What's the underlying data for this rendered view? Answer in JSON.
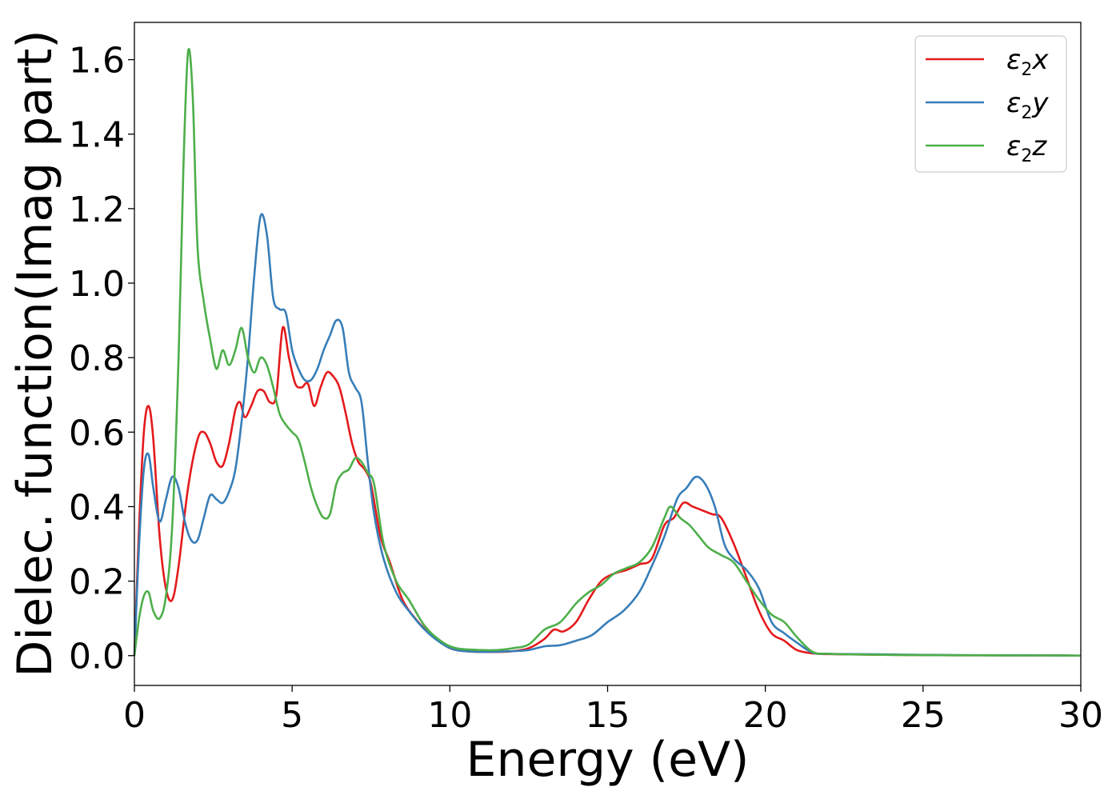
{
  "chart_data": {
    "type": "line",
    "xlabel": "Energy (eV)",
    "ylabel": "Dielec. function(Imag part)",
    "xlim": [
      0,
      30
    ],
    "ylim": [
      -0.08,
      1.7
    ],
    "xticks": [
      0,
      5,
      10,
      15,
      20,
      25,
      30
    ],
    "xtick_labels": [
      "0",
      "5",
      "10",
      "15",
      "20",
      "25",
      "30"
    ],
    "yticks": [
      0.0,
      0.2,
      0.4,
      0.6,
      0.8,
      1.0,
      1.2,
      1.4,
      1.6
    ],
    "ytick_labels": [
      "0.0",
      "0.2",
      "0.4",
      "0.6",
      "0.8",
      "1.0",
      "1.2",
      "1.4",
      "1.6"
    ],
    "grid": false,
    "legend_position": "top-right",
    "series": [
      {
        "name": "ε2x",
        "legend": {
          "base": "ε",
          "sub": "2",
          "var": "x"
        },
        "color": "#e41a1c",
        "x": [
          0,
          0.15,
          0.3,
          0.45,
          0.6,
          0.8,
          1.0,
          1.2,
          1.4,
          1.7,
          2.0,
          2.2,
          2.4,
          2.6,
          2.8,
          3.0,
          3.2,
          3.35,
          3.5,
          3.7,
          3.9,
          4.1,
          4.3,
          4.5,
          4.7,
          4.9,
          5.1,
          5.3,
          5.5,
          5.7,
          5.9,
          6.1,
          6.3,
          6.5,
          6.7,
          6.9,
          7.1,
          7.3,
          7.5,
          7.8,
          8.1,
          8.5,
          9.0,
          9.5,
          10.0,
          10.5,
          11,
          11.5,
          12,
          12.5,
          13,
          13.3,
          13.6,
          14,
          14.4,
          14.8,
          15.2,
          15.6,
          16,
          16.4,
          16.8,
          17.1,
          17.4,
          17.7,
          18,
          18.3,
          18.6,
          19,
          19.4,
          19.8,
          20.2,
          20.6,
          21,
          21.5,
          22,
          23,
          24,
          25,
          26,
          27,
          28,
          29,
          30
        ],
        "y": [
          0.0,
          0.35,
          0.6,
          0.67,
          0.58,
          0.32,
          0.18,
          0.15,
          0.24,
          0.45,
          0.58,
          0.6,
          0.57,
          0.52,
          0.51,
          0.57,
          0.66,
          0.68,
          0.64,
          0.67,
          0.71,
          0.71,
          0.68,
          0.7,
          0.88,
          0.8,
          0.73,
          0.72,
          0.73,
          0.67,
          0.72,
          0.76,
          0.75,
          0.72,
          0.65,
          0.57,
          0.52,
          0.5,
          0.46,
          0.32,
          0.25,
          0.15,
          0.09,
          0.05,
          0.02,
          0.012,
          0.01,
          0.01,
          0.012,
          0.02,
          0.045,
          0.07,
          0.065,
          0.09,
          0.15,
          0.2,
          0.22,
          0.23,
          0.245,
          0.26,
          0.35,
          0.37,
          0.41,
          0.4,
          0.39,
          0.38,
          0.37,
          0.3,
          0.21,
          0.12,
          0.06,
          0.04,
          0.015,
          0.006,
          0.004,
          0.003,
          0.002,
          0.0015,
          0.001,
          0.001,
          0.0005,
          0.0005,
          0.0
        ]
      },
      {
        "name": "ε2y",
        "legend": {
          "base": "ε",
          "sub": "2",
          "var": "y"
        },
        "color": "#377eb8",
        "x": [
          0,
          0.15,
          0.3,
          0.45,
          0.6,
          0.8,
          1.0,
          1.2,
          1.4,
          1.6,
          1.8,
          2.0,
          2.2,
          2.4,
          2.6,
          2.8,
          3.0,
          3.2,
          3.4,
          3.6,
          3.8,
          4.0,
          4.2,
          4.4,
          4.6,
          4.8,
          5.0,
          5.2,
          5.4,
          5.6,
          5.8,
          6.0,
          6.2,
          6.4,
          6.6,
          6.8,
          7.0,
          7.2,
          7.4,
          7.6,
          7.9,
          8.3,
          8.7,
          9.2,
          9.7,
          10.2,
          11,
          12,
          12.5,
          13,
          13.5,
          14,
          14.5,
          15,
          15.5,
          16,
          16.4,
          16.8,
          17.2,
          17.5,
          17.8,
          18.1,
          18.4,
          18.7,
          19,
          19.4,
          19.8,
          20.2,
          20.6,
          21,
          21.5,
          22,
          23,
          24,
          25,
          26,
          27,
          28,
          29,
          30
        ],
        "y": [
          0.0,
          0.3,
          0.5,
          0.54,
          0.45,
          0.36,
          0.42,
          0.48,
          0.45,
          0.36,
          0.31,
          0.31,
          0.37,
          0.43,
          0.42,
          0.41,
          0.44,
          0.5,
          0.63,
          0.8,
          1.02,
          1.18,
          1.13,
          0.96,
          0.93,
          0.92,
          0.82,
          0.77,
          0.74,
          0.74,
          0.77,
          0.82,
          0.86,
          0.9,
          0.88,
          0.76,
          0.72,
          0.68,
          0.52,
          0.38,
          0.26,
          0.17,
          0.12,
          0.07,
          0.035,
          0.015,
          0.01,
          0.012,
          0.015,
          0.025,
          0.028,
          0.04,
          0.055,
          0.09,
          0.12,
          0.17,
          0.24,
          0.32,
          0.42,
          0.45,
          0.48,
          0.46,
          0.4,
          0.3,
          0.26,
          0.23,
          0.18,
          0.09,
          0.06,
          0.035,
          0.008,
          0.005,
          0.004,
          0.003,
          0.002,
          0.0015,
          0.001,
          0.001,
          0.0005,
          0.0
        ]
      },
      {
        "name": "ε2z",
        "legend": {
          "base": "ε",
          "sub": "2",
          "var": "z"
        },
        "color": "#4daf4a",
        "x": [
          0,
          0.15,
          0.3,
          0.45,
          0.6,
          0.8,
          1.0,
          1.2,
          1.4,
          1.55,
          1.7,
          1.85,
          2.0,
          2.2,
          2.4,
          2.6,
          2.8,
          3.0,
          3.2,
          3.4,
          3.6,
          3.8,
          4.0,
          4.2,
          4.4,
          4.6,
          4.8,
          5.0,
          5.2,
          5.4,
          5.6,
          5.8,
          6.0,
          6.2,
          6.4,
          6.6,
          6.8,
          7.0,
          7.2,
          7.4,
          7.6,
          7.9,
          8.3,
          8.7,
          9.2,
          9.7,
          10.2,
          11,
          11.5,
          12,
          12.5,
          13,
          13.5,
          14,
          14.4,
          14.8,
          15.2,
          15.6,
          16,
          16.4,
          16.8,
          17.0,
          17.3,
          17.6,
          17.9,
          18.2,
          18.6,
          19,
          19.4,
          19.8,
          20.2,
          20.6,
          21,
          21.5,
          22,
          23,
          24,
          25,
          26,
          27,
          28,
          29,
          30
        ],
        "y": [
          0.0,
          0.1,
          0.16,
          0.17,
          0.12,
          0.1,
          0.16,
          0.35,
          0.8,
          1.3,
          1.62,
          1.5,
          1.1,
          0.95,
          0.85,
          0.77,
          0.82,
          0.78,
          0.82,
          0.88,
          0.8,
          0.76,
          0.8,
          0.78,
          0.72,
          0.65,
          0.62,
          0.6,
          0.58,
          0.52,
          0.45,
          0.4,
          0.37,
          0.38,
          0.46,
          0.49,
          0.5,
          0.53,
          0.52,
          0.49,
          0.46,
          0.3,
          0.2,
          0.15,
          0.08,
          0.04,
          0.02,
          0.015,
          0.015,
          0.02,
          0.03,
          0.07,
          0.09,
          0.14,
          0.17,
          0.19,
          0.22,
          0.235,
          0.25,
          0.29,
          0.37,
          0.4,
          0.37,
          0.35,
          0.32,
          0.29,
          0.27,
          0.25,
          0.2,
          0.15,
          0.11,
          0.09,
          0.05,
          0.01,
          0.005,
          0.003,
          0.002,
          0.0015,
          0.001,
          0.001,
          0.0005,
          0.0005,
          0.0
        ]
      }
    ]
  }
}
